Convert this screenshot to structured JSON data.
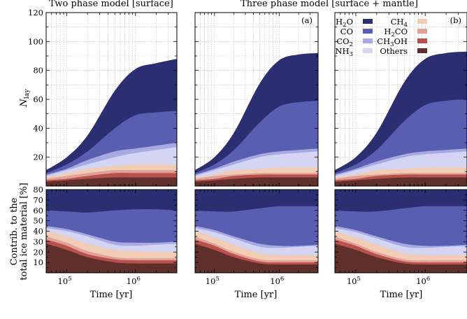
{
  "chart_data": [
    {
      "type": "area",
      "panel": "top-left",
      "title": "Two phase model [surface]",
      "tag": "",
      "xscale": "log",
      "xlim": [
        50000,
        4000000
      ],
      "ylim": [
        0,
        120
      ],
      "ylabel": "N_lay",
      "x": [
        50000,
        100000,
        200000,
        500000,
        1000000,
        2000000,
        4000000
      ],
      "layers": [
        {
          "name": "Others",
          "upper": [
            3,
            4,
            5,
            6,
            6,
            6,
            6
          ]
        },
        {
          "name": "CH3OH",
          "upper": [
            4,
            5,
            7,
            9,
            9,
            9,
            9
          ]
        },
        {
          "name": "H2CO",
          "upper": [
            5,
            7,
            9,
            11,
            11,
            11,
            11
          ]
        },
        {
          "name": "CH4",
          "upper": [
            6,
            9,
            12,
            14,
            15,
            15,
            15
          ]
        },
        {
          "name": "NH3",
          "upper": [
            7,
            11,
            15,
            20,
            23,
            25,
            27
          ]
        },
        {
          "name": "CO2",
          "upper": [
            8,
            12,
            18,
            24,
            26,
            28,
            30
          ]
        },
        {
          "name": "CO",
          "upper": [
            9,
            15,
            24,
            40,
            49,
            51,
            52
          ]
        },
        {
          "name": "H2O",
          "upper": [
            11,
            20,
            35,
            66,
            81,
            85,
            88
          ]
        }
      ]
    },
    {
      "type": "area",
      "panel": "top-middle",
      "title": "Three phase model [surface + mantle]",
      "tag": "(a)",
      "xscale": "log",
      "xlim": [
        50000,
        4000000
      ],
      "ylim": [
        0,
        120
      ],
      "ylabel": "",
      "x": [
        50000,
        100000,
        200000,
        500000,
        1000000,
        2000000,
        4000000
      ],
      "layers": [
        {
          "name": "Others",
          "upper": [
            3,
            4,
            5,
            6,
            6,
            6,
            6
          ]
        },
        {
          "name": "CH3OH",
          "upper": [
            4,
            5,
            7,
            8,
            8,
            8,
            8
          ]
        },
        {
          "name": "H2CO",
          "upper": [
            5,
            7,
            8,
            9,
            9,
            9,
            9
          ]
        },
        {
          "name": "CH4",
          "upper": [
            6,
            8,
            11,
            12,
            13,
            13,
            13
          ]
        },
        {
          "name": "NH3",
          "upper": [
            7,
            11,
            15,
            20,
            22,
            23,
            24
          ]
        },
        {
          "name": "CO2",
          "upper": [
            8,
            12,
            17,
            22,
            24,
            25,
            26
          ]
        },
        {
          "name": "CO",
          "upper": [
            9,
            15,
            25,
            44,
            55,
            58,
            59
          ]
        },
        {
          "name": "H2O",
          "upper": [
            11,
            20,
            37,
            71,
            87,
            91,
            92
          ]
        }
      ]
    },
    {
      "type": "area",
      "panel": "top-right",
      "title": "",
      "tag": "(b)",
      "xscale": "log",
      "xlim": [
        50000,
        4000000
      ],
      "ylim": [
        0,
        120
      ],
      "ylabel": "",
      "x": [
        50000,
        100000,
        200000,
        500000,
        1000000,
        2000000,
        4000000
      ],
      "layers": [
        {
          "name": "Others",
          "upper": [
            3,
            4,
            5,
            6,
            6,
            6,
            6
          ]
        },
        {
          "name": "CH3OH",
          "upper": [
            4,
            5,
            7,
            8,
            8,
            8,
            8
          ]
        },
        {
          "name": "H2CO",
          "upper": [
            5,
            7,
            8,
            9,
            9,
            9,
            9
          ]
        },
        {
          "name": "CH4",
          "upper": [
            6,
            8,
            11,
            12,
            13,
            13,
            13
          ]
        },
        {
          "name": "NH3",
          "upper": [
            7,
            11,
            15,
            20,
            22,
            23,
            24
          ]
        },
        {
          "name": "CO2",
          "upper": [
            8,
            12,
            17,
            22,
            24,
            25,
            26
          ]
        },
        {
          "name": "CO",
          "upper": [
            9,
            15,
            25,
            45,
            56,
            59,
            60
          ]
        },
        {
          "name": "H2O",
          "upper": [
            11,
            20,
            37,
            72,
            88,
            92,
            93
          ]
        }
      ]
    },
    {
      "type": "area",
      "panel": "bottom-left",
      "title": "",
      "tag": "",
      "xscale": "log",
      "xlim": [
        50000,
        4000000
      ],
      "ylim": [
        0,
        80
      ],
      "xlabel": "Time [yr]",
      "ylabel": "Contrib. to the total ice material [%]",
      "x": [
        50000,
        100000,
        200000,
        500000,
        1000000,
        2000000,
        4000000
      ],
      "layers": [
        {
          "name": "Others",
          "upper": [
            28,
            22,
            15,
            10,
            9,
            9,
            9
          ]
        },
        {
          "name": "CH3OH",
          "upper": [
            32,
            26,
            18,
            13,
            12,
            12,
            12
          ]
        },
        {
          "name": "H2CO",
          "upper": [
            35,
            29,
            21,
            15,
            14,
            14,
            14
          ]
        },
        {
          "name": "CH4",
          "upper": [
            40,
            35,
            28,
            22,
            21,
            20,
            20
          ]
        },
        {
          "name": "NH3",
          "upper": [
            43,
            40,
            35,
            27,
            26,
            27,
            28
          ]
        },
        {
          "name": "CO2",
          "upper": [
            45,
            42,
            37,
            30,
            29,
            29,
            30
          ]
        },
        {
          "name": "CO",
          "upper": [
            60,
            59,
            58,
            60,
            61,
            61,
            60
          ]
        },
        {
          "name": "H2O",
          "upper": [
            80,
            80,
            80,
            80,
            80,
            80,
            80
          ]
        }
      ]
    },
    {
      "type": "area",
      "panel": "bottom-middle",
      "title": "",
      "tag": "",
      "xscale": "log",
      "xlim": [
        50000,
        4000000
      ],
      "ylim": [
        0,
        80
      ],
      "xlabel": "Time [yr]",
      "ylabel": "",
      "x": [
        50000,
        100000,
        200000,
        500000,
        1000000,
        2000000,
        4000000
      ],
      "layers": [
        {
          "name": "Others",
          "upper": [
            28,
            22,
            15,
            9,
            8,
            8,
            8
          ]
        },
        {
          "name": "CH3OH",
          "upper": [
            32,
            26,
            18,
            11,
            10,
            10,
            10
          ]
        },
        {
          "name": "H2CO",
          "upper": [
            35,
            28,
            20,
            13,
            12,
            12,
            12
          ]
        },
        {
          "name": "CH4",
          "upper": [
            40,
            34,
            27,
            19,
            17,
            17,
            17
          ]
        },
        {
          "name": "NH3",
          "upper": [
            43,
            39,
            33,
            25,
            24,
            25,
            26
          ]
        },
        {
          "name": "CO2",
          "upper": [
            45,
            41,
            35,
            28,
            26,
            26,
            27
          ]
        },
        {
          "name": "CO",
          "upper": [
            60,
            59,
            59,
            62,
            64,
            64,
            64
          ]
        },
        {
          "name": "H2O",
          "upper": [
            80,
            80,
            80,
            80,
            80,
            80,
            80
          ]
        }
      ]
    },
    {
      "type": "area",
      "panel": "bottom-right",
      "title": "",
      "tag": "",
      "xscale": "log",
      "xlim": [
        50000,
        4000000
      ],
      "ylim": [
        0,
        80
      ],
      "xlabel": "Time [yr]",
      "ylabel": "",
      "x": [
        50000,
        100000,
        200000,
        500000,
        1000000,
        2000000,
        4000000
      ],
      "layers": [
        {
          "name": "Others",
          "upper": [
            28,
            22,
            15,
            9,
            8,
            8,
            8
          ]
        },
        {
          "name": "CH3OH",
          "upper": [
            32,
            26,
            18,
            11,
            10,
            10,
            10
          ]
        },
        {
          "name": "H2CO",
          "upper": [
            35,
            28,
            20,
            13,
            12,
            12,
            12
          ]
        },
        {
          "name": "CH4",
          "upper": [
            40,
            34,
            27,
            19,
            17,
            17,
            17
          ]
        },
        {
          "name": "NH3",
          "upper": [
            43,
            39,
            33,
            25,
            24,
            25,
            26
          ]
        },
        {
          "name": "CO2",
          "upper": [
            45,
            41,
            35,
            28,
            26,
            26,
            27
          ]
        },
        {
          "name": "CO",
          "upper": [
            60,
            59,
            59,
            62,
            64,
            64,
            64
          ]
        },
        {
          "name": "H2O",
          "upper": [
            80,
            80,
            80,
            80,
            80,
            80,
            80
          ]
        }
      ]
    }
  ],
  "legend": {
    "location": "top-right of panel (b)",
    "columns": [
      [
        {
          "name": "H2O",
          "color": "#2b2f72"
        },
        {
          "name": "CO",
          "color": "#5a5eb0"
        },
        {
          "name": "CO2",
          "color": "#a6a9e2"
        },
        {
          "name": "NH3",
          "color": "#d4d5f2"
        }
      ],
      [
        {
          "name": "CH4",
          "color": "#f2cdb6"
        },
        {
          "name": "H2CO",
          "color": "#e0a197"
        },
        {
          "name": "CH3OH",
          "color": "#b8504c"
        },
        {
          "name": "Others",
          "color": "#5e2f2b"
        }
      ]
    ]
  },
  "colors": {
    "H2O": "#2b2f72",
    "CO": "#5a5eb0",
    "CO2": "#a6a9e2",
    "NH3": "#d4d5f2",
    "CH4": "#f2cdb6",
    "H2CO": "#e0a197",
    "CH3OH": "#b8504c",
    "Others": "#5e2f2b"
  },
  "ticks": {
    "top_y": [
      "20",
      "40",
      "60",
      "80",
      "100",
      "120"
    ],
    "bottom_y": [
      "10",
      "20",
      "30",
      "40",
      "50",
      "60",
      "70",
      "80"
    ],
    "x_base": "10",
    "x_exp": [
      "5",
      "6"
    ]
  },
  "labels": {
    "title_left": "Two phase model [surface]",
    "title_right": "Three phase model [surface + mantle]",
    "ylabel_top_main": "N",
    "ylabel_top_sub": "lay",
    "ylabel_bottom_line1": "Contrib. to the",
    "ylabel_bottom_line2": "total ice material [%]",
    "xlabel": "Time [yr]"
  },
  "grid": true
}
